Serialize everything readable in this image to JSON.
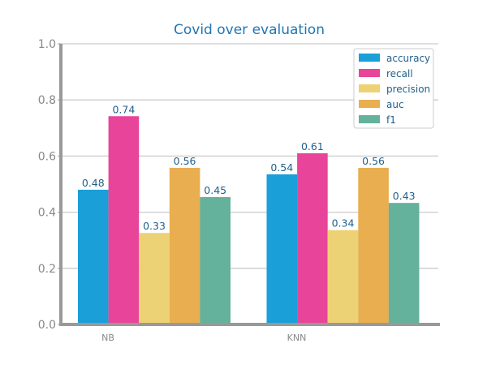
{
  "chart_data": {
    "type": "bar",
    "title": "Covid over evaluation",
    "xlabel": "",
    "ylabel": "",
    "categories": [
      "NB",
      "KNN"
    ],
    "ylim": [
      0,
      1
    ],
    "yticks": [
      "0.0",
      "0.2",
      "0.4",
      "0.6",
      "0.8",
      "1.0"
    ],
    "grid": true,
    "legend_position": "top-right",
    "series": [
      {
        "name": "accuracy",
        "color": "#1a9fd9",
        "values": [
          0.48,
          0.535
        ],
        "labels": [
          "0.48",
          "0.54"
        ]
      },
      {
        "name": "recall",
        "color": "#e8449a",
        "values": [
          0.742,
          0.61
        ],
        "labels": [
          "0.74",
          "0.61"
        ]
      },
      {
        "name": "precision",
        "color": "#ecd274",
        "values": [
          0.326,
          0.336
        ],
        "labels": [
          "0.33",
          "0.34"
        ]
      },
      {
        "name": "auc",
        "color": "#e8ae4f",
        "values": [
          0.558,
          0.558
        ],
        "labels": [
          "0.56",
          "0.56"
        ]
      },
      {
        "name": "f1",
        "color": "#64b19c",
        "values": [
          0.454,
          0.433
        ],
        "labels": [
          "0.45",
          "0.43"
        ]
      }
    ]
  }
}
